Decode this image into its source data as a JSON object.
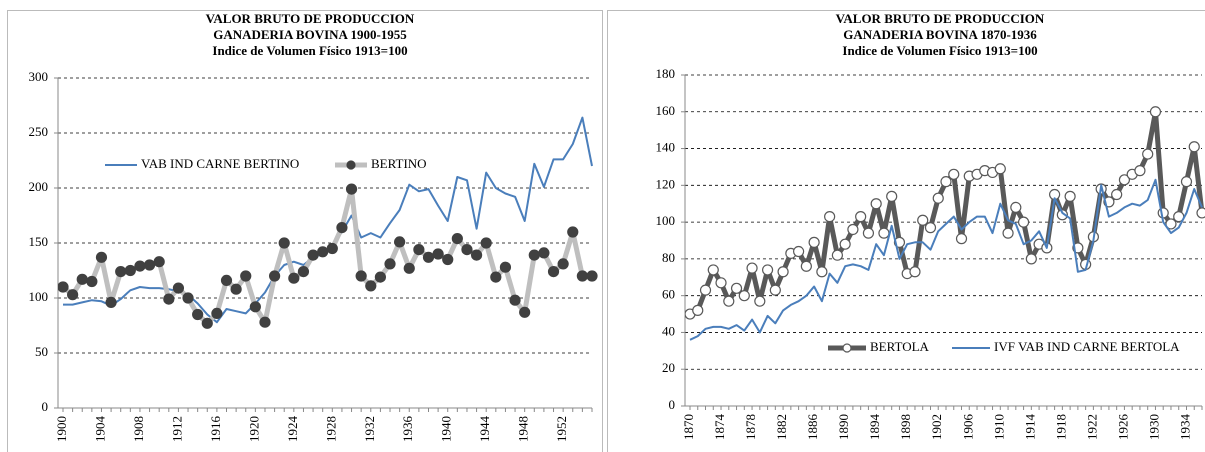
{
  "chart_data": [
    {
      "type": "line",
      "title": [
        "VALOR BRUTO DE PRODUCCION",
        "GANADERIA  BOVINA 1900-1955",
        "Indice de Volumen Físico 1913=100"
      ],
      "x": [
        1900,
        1901,
        1902,
        1903,
        1904,
        1905,
        1906,
        1907,
        1908,
        1909,
        1910,
        1911,
        1912,
        1913,
        1914,
        1915,
        1916,
        1917,
        1918,
        1919,
        1920,
        1921,
        1922,
        1923,
        1924,
        1925,
        1926,
        1927,
        1928,
        1929,
        1930,
        1931,
        1932,
        1933,
        1934,
        1935,
        1936,
        1937,
        1938,
        1939,
        1940,
        1941,
        1942,
        1943,
        1944,
        1945,
        1946,
        1947,
        1948,
        1949,
        1950,
        1951,
        1952,
        1953,
        1954,
        1955
      ],
      "xlim": [
        1900,
        1955
      ],
      "xticks": [
        1900,
        1904,
        1908,
        1912,
        1916,
        1920,
        1924,
        1928,
        1932,
        1936,
        1940,
        1944,
        1948,
        1952
      ],
      "ylim": [
        0,
        300
      ],
      "yticks": [
        0,
        50,
        100,
        150,
        200,
        250,
        300
      ],
      "grid": true,
      "series": [
        {
          "name": "VAB IND CARNE BERTINO",
          "color": "#4a7ebb",
          "values": [
            94,
            94,
            96,
            98,
            97,
            93,
            99,
            107,
            110,
            109,
            109,
            108,
            106,
            103,
            95,
            85,
            78,
            90,
            88,
            86,
            95,
            105,
            120,
            130,
            133,
            130,
            137,
            140,
            148,
            160,
            175,
            155,
            159,
            155,
            168,
            180,
            203,
            197,
            199,
            184,
            170,
            210,
            207,
            163,
            214,
            200,
            195,
            192,
            170,
            222,
            201,
            226,
            226,
            240,
            264,
            220
          ]
        },
        {
          "name": "BERTINO",
          "color": "#bfbfbf",
          "marker_color": "#404040",
          "marker_fill": "#404040",
          "values": [
            110,
            103,
            117,
            115,
            137,
            96,
            124,
            125,
            129,
            130,
            133,
            99,
            109,
            100,
            85,
            77,
            86,
            116,
            108,
            120,
            92,
            78,
            120,
            150,
            118,
            124,
            139,
            142,
            145,
            164,
            199,
            120,
            111,
            119,
            131,
            151,
            127,
            144,
            137,
            140,
            135,
            154,
            144,
            139,
            150,
            119,
            128,
            98,
            87,
            139,
            141,
            124,
            131,
            160,
            120,
            120
          ]
        }
      ]
    },
    {
      "type": "line",
      "title": [
        "VALOR BRUTO DE PRODUCCION",
        "GANADERIA  BOVINA 1870-1936",
        "Indice de Volumen Físico 1913=100"
      ],
      "x": [
        1870,
        1871,
        1872,
        1873,
        1874,
        1875,
        1876,
        1877,
        1878,
        1879,
        1880,
        1881,
        1882,
        1883,
        1884,
        1885,
        1886,
        1887,
        1888,
        1889,
        1890,
        1891,
        1892,
        1893,
        1894,
        1895,
        1896,
        1897,
        1898,
        1899,
        1900,
        1901,
        1902,
        1903,
        1904,
        1905,
        1906,
        1907,
        1908,
        1909,
        1910,
        1911,
        1912,
        1913,
        1914,
        1915,
        1916,
        1917,
        1918,
        1919,
        1920,
        1921,
        1922,
        1923,
        1924,
        1925,
        1926,
        1927,
        1928,
        1929,
        1930,
        1931,
        1932,
        1933,
        1934,
        1935,
        1936
      ],
      "xlim": [
        1870,
        1936
      ],
      "xticks": [
        1870,
        1874,
        1878,
        1882,
        1886,
        1890,
        1894,
        1898,
        1902,
        1906,
        1910,
        1914,
        1918,
        1922,
        1926,
        1930,
        1934
      ],
      "ylim": [
        0,
        180
      ],
      "yticks": [
        0,
        20,
        40,
        60,
        80,
        100,
        120,
        140,
        160,
        180
      ],
      "grid": true,
      "series": [
        {
          "name": "BERTOLA",
          "color": "#595959",
          "marker_color": "#595959",
          "marker_fill": "#ffffff",
          "values": [
            50,
            52,
            63,
            74,
            67,
            57,
            64,
            60,
            75,
            57,
            74,
            63,
            73,
            83,
            84,
            76,
            89,
            73,
            103,
            82,
            88,
            96,
            103,
            94,
            110,
            94,
            114,
            89,
            72,
            73,
            101,
            97,
            113,
            122,
            126,
            91,
            125,
            126,
            128,
            127,
            129,
            94,
            108,
            100,
            80,
            88,
            86,
            115,
            104,
            114,
            86,
            77,
            92,
            118,
            111,
            115,
            123,
            126,
            128,
            137,
            160,
            105,
            99,
            103,
            122,
            141,
            105
          ]
        },
        {
          "name": "IVF VAB IND CARNE BERTOLA",
          "color": "#4a7ebb",
          "values": [
            36,
            38,
            42,
            43,
            43,
            42,
            44,
            41,
            47,
            40,
            49,
            45,
            52,
            55,
            57,
            60,
            65,
            57,
            72,
            67,
            76,
            77,
            76,
            74,
            88,
            82,
            98,
            80,
            88,
            89,
            89,
            85,
            95,
            99,
            103,
            96,
            100,
            103,
            103,
            94,
            110,
            101,
            99,
            88,
            90,
            95,
            86,
            113,
            105,
            102,
            73,
            74,
            90,
            120,
            103,
            105,
            108,
            110,
            109,
            112,
            123,
            100,
            94,
            97,
            105,
            118,
            108
          ]
        }
      ]
    }
  ]
}
